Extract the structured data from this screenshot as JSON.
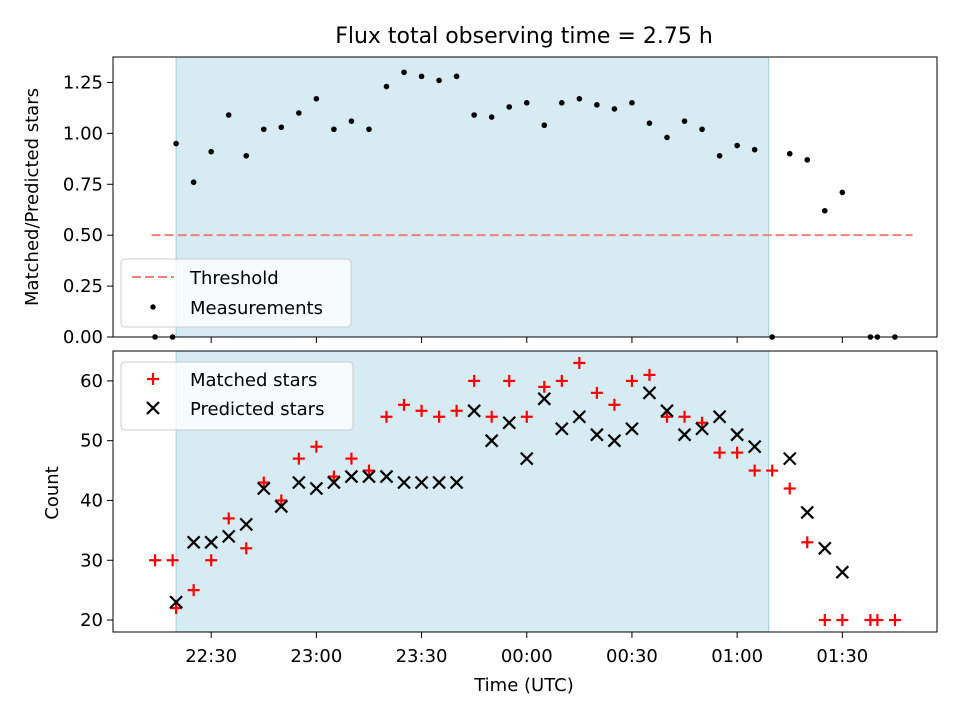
{
  "chart_data": [
    {
      "type": "scatter",
      "title": "Flux total observing time = 2.75 h",
      "xlabel": "",
      "ylabel": "Matched/Predicted stars",
      "ylim": [
        0,
        1.375
      ],
      "yticks": [
        0.0,
        0.25,
        0.5,
        0.75,
        1.0,
        1.25
      ],
      "ytick_labels": [
        "0.00",
        "0.25",
        "0.50",
        "0.75",
        "1.00",
        "1.25"
      ],
      "xlim": [
        "22:02",
        "01:57"
      ],
      "shaded_interval": [
        "22:20",
        "01:09"
      ],
      "shade_color": "#add8e6",
      "legend_position": "lower-left",
      "threshold": {
        "name": "Threshold",
        "value": 0.5,
        "x_range": [
          "22:13",
          "01:50"
        ],
        "color": "#f08080",
        "style": "dashed"
      },
      "series": [
        {
          "name": "Measurements",
          "color": "#000000",
          "marker": "dot",
          "points": [
            [
              "22:14",
              0.0
            ],
            [
              "22:19",
              0.0
            ],
            [
              "22:20",
              0.95
            ],
            [
              "22:25",
              0.76
            ],
            [
              "22:30",
              0.91
            ],
            [
              "22:35",
              1.09
            ],
            [
              "22:40",
              0.89
            ],
            [
              "22:45",
              1.02
            ],
            [
              "22:50",
              1.03
            ],
            [
              "22:55",
              1.1
            ],
            [
              "23:00",
              1.17
            ],
            [
              "23:05",
              1.02
            ],
            [
              "23:10",
              1.06
            ],
            [
              "23:15",
              1.02
            ],
            [
              "23:20",
              1.23
            ],
            [
              "23:25",
              1.3
            ],
            [
              "23:30",
              1.28
            ],
            [
              "23:35",
              1.26
            ],
            [
              "23:40",
              1.28
            ],
            [
              "23:45",
              1.09
            ],
            [
              "23:50",
              1.08
            ],
            [
              "23:55",
              1.13
            ],
            [
              "00:00",
              1.15
            ],
            [
              "00:05",
              1.04
            ],
            [
              "00:10",
              1.15
            ],
            [
              "00:15",
              1.17
            ],
            [
              "00:20",
              1.14
            ],
            [
              "00:25",
              1.12
            ],
            [
              "00:30",
              1.15
            ],
            [
              "00:35",
              1.05
            ],
            [
              "00:40",
              0.98
            ],
            [
              "00:45",
              1.06
            ],
            [
              "00:50",
              1.02
            ],
            [
              "00:55",
              0.89
            ],
            [
              "01:00",
              0.94
            ],
            [
              "01:05",
              0.92
            ],
            [
              "01:10",
              0.0
            ],
            [
              "01:15",
              0.9
            ],
            [
              "01:20",
              0.87
            ],
            [
              "01:25",
              0.62
            ],
            [
              "01:30",
              0.71
            ],
            [
              "01:38",
              0.0
            ],
            [
              "01:40",
              0.0
            ],
            [
              "01:45",
              0.0
            ]
          ]
        }
      ]
    },
    {
      "type": "scatter",
      "title": "",
      "xlabel": "Time (UTC)",
      "ylabel": "Count",
      "ylim": [
        18,
        65
      ],
      "yticks": [
        20,
        30,
        40,
        50,
        60
      ],
      "ytick_labels": [
        "20",
        "30",
        "40",
        "50",
        "60"
      ],
      "xticks": [
        "22:30",
        "23:00",
        "23:30",
        "00:00",
        "00:30",
        "01:00",
        "01:30"
      ],
      "xlim": [
        "22:02",
        "01:57"
      ],
      "shaded_interval": [
        "22:20",
        "01:09"
      ],
      "shade_color": "#add8e6",
      "legend_position": "upper-left",
      "x": [
        "22:14",
        "22:19",
        "22:20",
        "22:25",
        "22:30",
        "22:35",
        "22:40",
        "22:45",
        "22:50",
        "22:55",
        "23:00",
        "23:05",
        "23:10",
        "23:15",
        "23:20",
        "23:25",
        "23:30",
        "23:35",
        "23:40",
        "23:45",
        "23:50",
        "23:55",
        "00:00",
        "00:05",
        "00:10",
        "00:15",
        "00:20",
        "00:25",
        "00:30",
        "00:35",
        "00:40",
        "00:45",
        "00:50",
        "00:55",
        "01:00",
        "01:05",
        "01:10",
        "01:15",
        "01:20",
        "01:25",
        "01:30",
        "01:38",
        "01:40",
        "01:45"
      ],
      "series": [
        {
          "name": "Matched stars",
          "color": "#ff0000",
          "marker": "plus",
          "values": [
            30,
            30,
            22,
            25,
            30,
            37,
            32,
            43,
            40,
            47,
            49,
            44,
            47,
            45,
            54,
            56,
            55,
            54,
            55,
            60,
            54,
            60,
            54,
            59,
            60,
            63,
            58,
            56,
            60,
            61,
            54,
            54,
            53,
            48,
            48,
            45,
            45,
            42,
            33,
            20,
            20,
            20,
            20,
            20
          ]
        },
        {
          "name": "Predicted stars",
          "color": "#000000",
          "marker": "x",
          "values": [
            null,
            null,
            23,
            33,
            33,
            34,
            36,
            42,
            39,
            43,
            42,
            43,
            44,
            44,
            44,
            43,
            43,
            43,
            43,
            55,
            50,
            53,
            47,
            57,
            52,
            54,
            51,
            50,
            52,
            58,
            55,
            51,
            52,
            54,
            51,
            49,
            null,
            47,
            38,
            32,
            28,
            null,
            null,
            null
          ]
        }
      ]
    }
  ]
}
